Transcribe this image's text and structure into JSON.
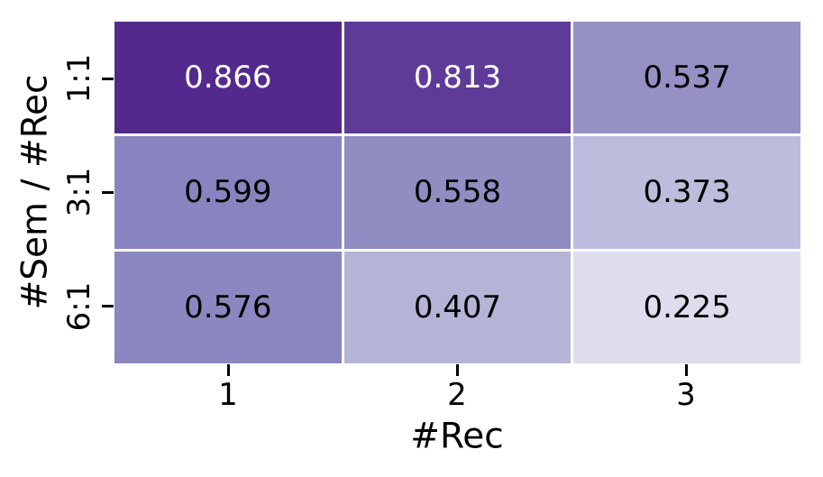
{
  "figure": {
    "background_color": "#ffffff",
    "text_color": "#000000"
  },
  "chart_data": {
    "type": "heatmap",
    "title": "",
    "xlabel": "#Rec",
    "ylabel": "#Sem / #Rec",
    "x_categories": [
      "1",
      "2",
      "3"
    ],
    "y_categories": [
      "1:1",
      "3:1",
      "6:1"
    ],
    "values": [
      [
        0.866,
        0.813,
        0.537
      ],
      [
        0.599,
        0.558,
        0.373
      ],
      [
        0.576,
        0.407,
        0.225
      ]
    ],
    "colormap": "Purples",
    "vmin": 0,
    "vmax": 1,
    "grid_line_color": "#ffffff",
    "legend_position": "none",
    "cells": [
      {
        "row": "1:1",
        "col": "1",
        "value": 0.866,
        "label": "0.866",
        "bg": "#54298d",
        "fg": "#ffffff"
      },
      {
        "row": "1:1",
        "col": "2",
        "value": 0.813,
        "label": "0.813",
        "bg": "#5e3b98",
        "fg": "#ffffff"
      },
      {
        "row": "1:1",
        "col": "3",
        "value": 0.537,
        "label": "0.537",
        "bg": "#9591c4",
        "fg": "#000000"
      },
      {
        "row": "3:1",
        "col": "1",
        "value": 0.599,
        "label": "0.599",
        "bg": "#8884bf",
        "fg": "#000000"
      },
      {
        "row": "3:1",
        "col": "2",
        "value": 0.558,
        "label": "0.558",
        "bg": "#908dc2",
        "fg": "#000000"
      },
      {
        "row": "3:1",
        "col": "3",
        "value": 0.373,
        "label": "0.373",
        "bg": "#bcbddc",
        "fg": "#000000"
      },
      {
        "row": "6:1",
        "col": "1",
        "value": 0.576,
        "label": "0.576",
        "bg": "#8b87c0",
        "fg": "#000000"
      },
      {
        "row": "6:1",
        "col": "2",
        "value": 0.407,
        "label": "0.407",
        "bg": "#b4b4d7",
        "fg": "#000000"
      },
      {
        "row": "6:1",
        "col": "3",
        "value": 0.225,
        "label": "0.225",
        "bg": "#dedded",
        "fg": "#000000"
      }
    ]
  }
}
